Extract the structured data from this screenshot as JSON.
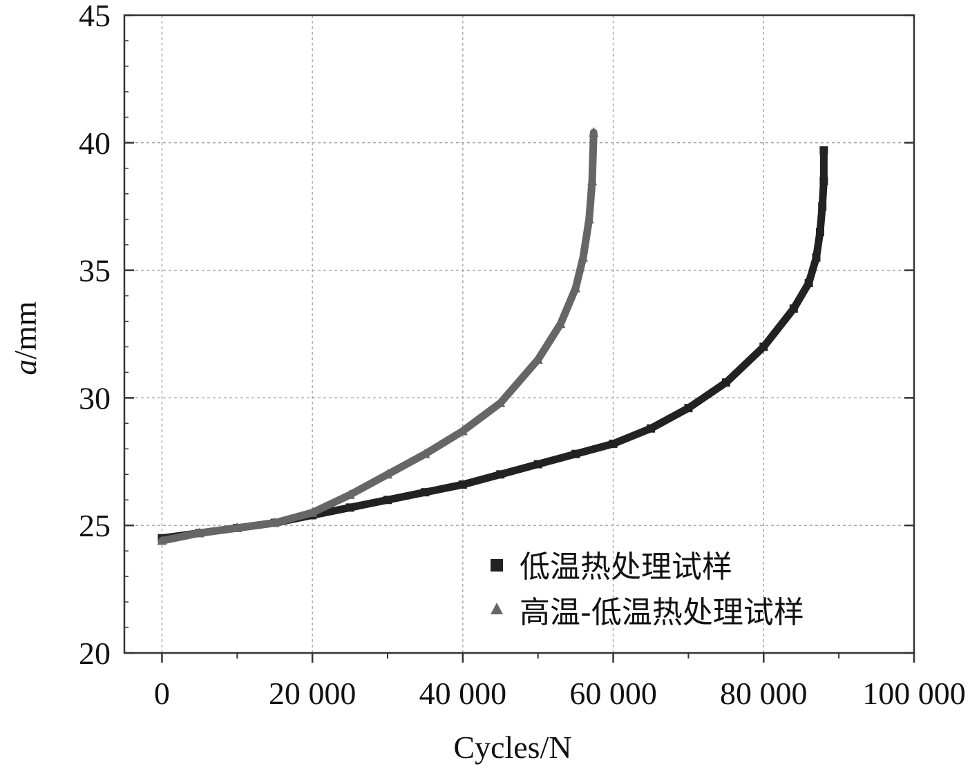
{
  "chart_data": {
    "type": "scatter",
    "xlabel": "Cycles/N",
    "ylabel_italic": "a",
    "ylabel_rest": "/mm",
    "xlim": [
      -5000,
      100000
    ],
    "ylim": [
      20,
      45
    ],
    "xticks": [
      0,
      20000,
      40000,
      60000,
      80000,
      100000
    ],
    "xtick_labels": [
      "0",
      "20 000",
      "40 000",
      "60 000",
      "80 000",
      "100 000"
    ],
    "yticks": [
      20,
      25,
      30,
      35,
      40,
      45
    ],
    "ytick_labels": [
      "20",
      "25",
      "30",
      "35",
      "40",
      "45"
    ],
    "grid": true,
    "legend_position": "bottom-right",
    "series": [
      {
        "name": "低温热处理试样",
        "marker": "square",
        "color": "#222222",
        "x": [
          0,
          5000,
          10000,
          15000,
          20000,
          25000,
          30000,
          35000,
          40000,
          45000,
          50000,
          55000,
          60000,
          65000,
          70000,
          75000,
          80000,
          84000,
          86000,
          87000,
          87500,
          87800,
          88000,
          88000
        ],
        "y": [
          24.5,
          24.7,
          24.9,
          25.1,
          25.4,
          25.7,
          26.0,
          26.3,
          26.6,
          27.0,
          27.4,
          27.8,
          28.2,
          28.8,
          29.6,
          30.6,
          32.0,
          33.5,
          34.5,
          35.5,
          36.5,
          37.5,
          38.5,
          39.7
        ]
      },
      {
        "name": "高温-低温热处理试样",
        "marker": "triangle",
        "color": "#666666",
        "x": [
          0,
          5000,
          10000,
          15000,
          20000,
          25000,
          30000,
          35000,
          40000,
          45000,
          50000,
          53000,
          55000,
          56000,
          56800,
          57200,
          57400
        ],
        "y": [
          24.4,
          24.7,
          24.9,
          25.1,
          25.5,
          26.2,
          27.0,
          27.8,
          28.7,
          29.8,
          31.5,
          32.9,
          34.3,
          35.5,
          37.0,
          38.5,
          40.4
        ]
      }
    ]
  }
}
